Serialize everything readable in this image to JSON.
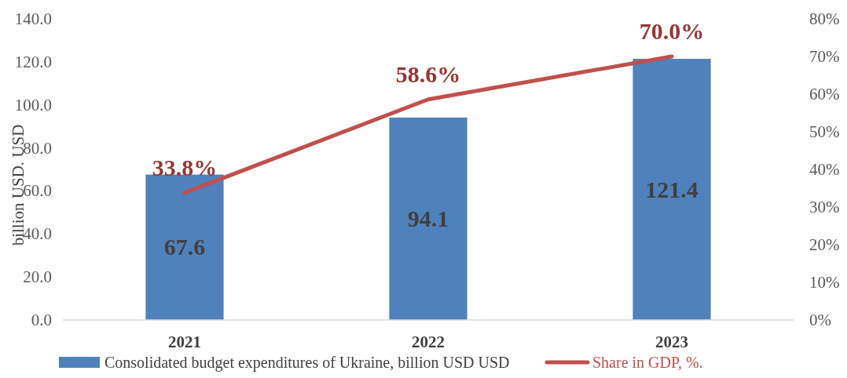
{
  "chart_data": {
    "type": "bar",
    "ylabel": "billion USD. USD",
    "categories": [
      "2021",
      "2022",
      "2023"
    ],
    "series": [
      {
        "name": "Consolidated budget expenditures of Ukraine, billion USD USD",
        "color": "#4f81bd",
        "values": [
          67.6,
          94.1,
          121.4
        ],
        "value_labels": [
          "67.6",
          "94.1",
          "121.4"
        ]
      },
      {
        "name": "Share in GDP, %.",
        "type": "line",
        "axis": "y2",
        "color": "#c0504d",
        "values": [
          33.8,
          58.6,
          70.0
        ],
        "value_labels": [
          "33.8%",
          "58.6%",
          "70.0%"
        ]
      }
    ],
    "ylim": [
      0,
      140
    ],
    "yticks": [
      {
        "value": 0,
        "label": "0.0"
      },
      {
        "value": 20,
        "label": "20.0"
      },
      {
        "value": 40,
        "label": "40.0"
      },
      {
        "value": 60,
        "label": "60.0"
      },
      {
        "value": 80,
        "label": "80.0"
      },
      {
        "value": 100,
        "label": "100.0"
      },
      {
        "value": 120,
        "label": "120.0"
      },
      {
        "value": 140,
        "label": "140.0"
      }
    ],
    "y2lim": [
      0,
      80
    ],
    "y2ticks": [
      {
        "value": 0,
        "label": "0%"
      },
      {
        "value": 10,
        "label": "10%"
      },
      {
        "value": 20,
        "label": "20%"
      },
      {
        "value": 30,
        "label": "30%"
      },
      {
        "value": 40,
        "label": "40%"
      },
      {
        "value": 50,
        "label": "50%"
      },
      {
        "value": 60,
        "label": "60%"
      },
      {
        "value": 70,
        "label": "70%"
      },
      {
        "value": 80,
        "label": "80%"
      }
    ],
    "grid": false,
    "legend": "bottom"
  }
}
